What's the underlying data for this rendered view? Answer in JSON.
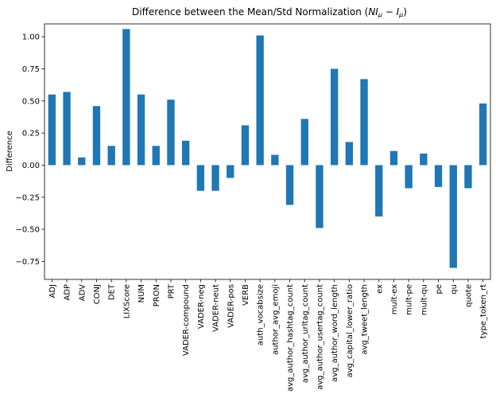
{
  "chart_data": {
    "type": "bar",
    "title_prefix": "Difference between the Mean/Std Normalization (",
    "title_suffix": ")",
    "title_math": [
      {
        "text": "NI",
        "style": "italic"
      },
      {
        "text": "μ",
        "style": "sub"
      },
      {
        "text": " − ",
        "style": "normal"
      },
      {
        "text": "I",
        "style": "italic"
      },
      {
        "text": "μ",
        "style": "sub"
      }
    ],
    "xlabel": "",
    "ylabel": "Difference",
    "ylim": [
      -0.89,
      1.1
    ],
    "yticks": [
      -0.75,
      -0.5,
      -0.25,
      0.0,
      0.25,
      0.5,
      0.75,
      1.0
    ],
    "ytick_labels": [
      "−0.75",
      "−0.50",
      "−0.25",
      "0.00",
      "0.25",
      "0.50",
      "0.75",
      "1.00"
    ],
    "grid": false,
    "bar_color": "#1f77b4",
    "categories": [
      "ADJ",
      "ADP",
      "ADV",
      "CONJ",
      "DET",
      "LIXScore",
      "NUM",
      "PRON",
      "PRT",
      "VADER-compound",
      "VADER-neg",
      "VADER-neut",
      "VADER-pos",
      "VERB",
      "auth_vocabsize",
      "author_avg_emoji",
      "avg_author_hashtag_count",
      "avg_author_urltag_count",
      "avg_author_usertag_count",
      "avg_author_word_length",
      "avg_capital_lower_ratio",
      "avg_tweet_length",
      "ex",
      "mult-ex",
      "mult-pe",
      "mult-qu",
      "pe",
      "qu",
      "quote",
      "type_token_rt"
    ],
    "values": [
      0.55,
      0.57,
      0.06,
      0.46,
      0.15,
      1.06,
      0.55,
      0.15,
      0.51,
      0.19,
      -0.2,
      -0.2,
      -0.1,
      0.31,
      1.01,
      0.08,
      -0.31,
      0.36,
      -0.49,
      0.75,
      0.18,
      0.67,
      -0.4,
      0.11,
      -0.18,
      0.09,
      -0.17,
      -0.8,
      -0.18,
      0.48
    ]
  }
}
